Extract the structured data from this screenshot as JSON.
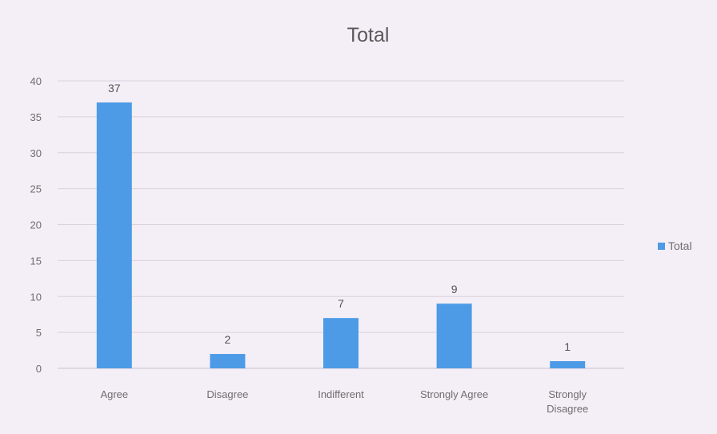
{
  "chart_data": {
    "type": "bar",
    "title": "Total",
    "categories": [
      "Agree",
      "Disagree",
      "Indifferent",
      "Strongly Agree",
      "Strongly Disagree"
    ],
    "series": [
      {
        "name": "Total",
        "values": [
          37,
          2,
          7,
          9,
          1
        ],
        "color": "#4d9be6"
      }
    ],
    "xlabel": "",
    "ylabel": "",
    "ylim": [
      0,
      40
    ],
    "yticks": [
      0,
      5,
      10,
      15,
      20,
      25,
      30,
      35,
      40
    ],
    "grid": true,
    "legend": "right",
    "data_labels": true
  }
}
